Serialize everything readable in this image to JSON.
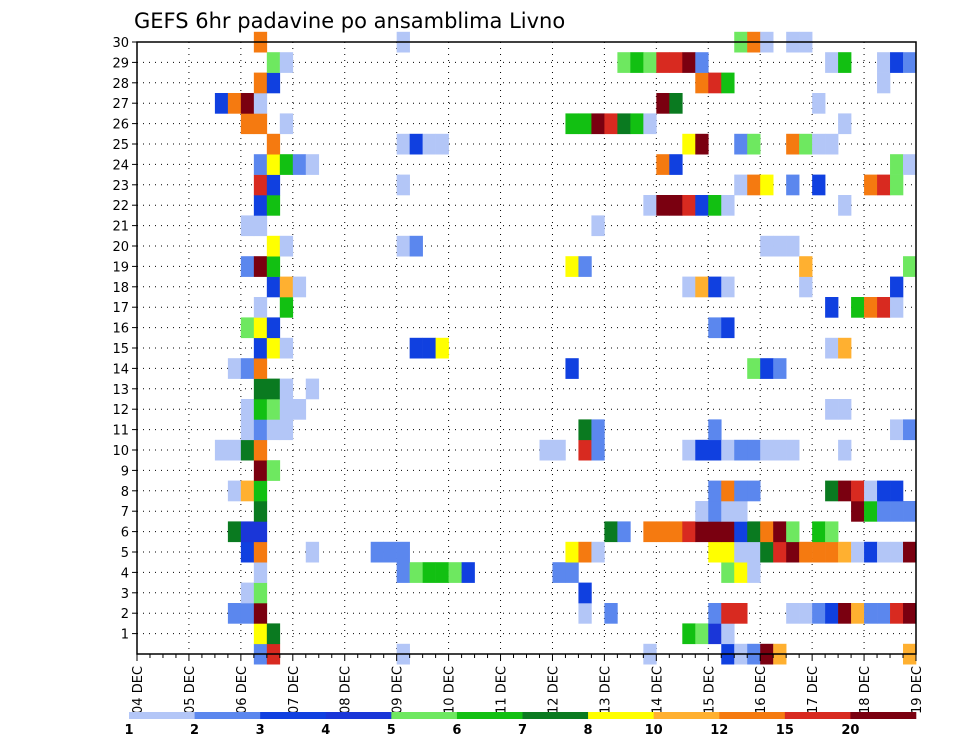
{
  "chart_data": {
    "type": "heatmap",
    "title": "GEFS 6hr padavine po ansamblima Livno",
    "xlabel": "",
    "ylabel": "",
    "grid": "dotted",
    "x_ticks": [
      "04 DEC",
      "05 DEC",
      "06 DEC",
      "07 DEC",
      "08 DEC",
      "09 DEC",
      "10 DEC",
      "11 DEC",
      "12 DEC",
      "13 DEC",
      "14 DEC",
      "15 DEC",
      "16 DEC",
      "17 DEC",
      "18 DEC",
      "19 DEC"
    ],
    "y_ticks": [
      "1",
      "2",
      "3",
      "4",
      "5",
      "6",
      "7",
      "8",
      "9",
      "10",
      "11",
      "12",
      "13",
      "14",
      "15",
      "16",
      "17",
      "18",
      "19",
      "20",
      "21",
      "22",
      "23",
      "24",
      "25",
      "26",
      "27",
      "28",
      "29",
      "30"
    ],
    "x_unit": "6h step from 04 DEC 00Z (60 steps)",
    "legend": {
      "labels": [
        "1",
        "2",
        "3",
        "4",
        "5",
        "6",
        "7",
        "8",
        "10",
        "12",
        "15",
        "20"
      ],
      "colors": [
        "#b3c6f7",
        "#5b87ee",
        "#1040e0",
        "#1a36d8",
        "#6ee860",
        "#12c012",
        "#0a7a20",
        "#ffff00",
        "#ffb030",
        "#f57a10",
        "#d82a20",
        "#7a0010"
      ]
    },
    "members": [
      {
        "member": 0,
        "cells": [
          [
            9,
            2
          ],
          [
            10,
            11
          ],
          [
            20,
            1
          ],
          [
            39,
            1
          ],
          [
            45,
            3
          ],
          [
            46,
            0
          ],
          [
            47,
            2
          ],
          [
            48,
            12
          ],
          [
            49,
            9
          ],
          [
            59,
            9
          ]
        ]
      },
      {
        "member": 1,
        "cells": [
          [
            9,
            8
          ],
          [
            10,
            7
          ],
          [
            42,
            6
          ],
          [
            43,
            5
          ],
          [
            44,
            4
          ],
          [
            45,
            1
          ]
        ]
      },
      {
        "member": 2,
        "cells": [
          [
            7,
            2
          ],
          [
            8,
            2
          ],
          [
            9,
            12
          ],
          [
            34,
            1
          ],
          [
            36,
            2
          ],
          [
            44,
            2
          ],
          [
            45,
            11
          ],
          [
            46,
            11
          ],
          [
            50,
            1
          ],
          [
            51,
            1
          ],
          [
            52,
            2
          ],
          [
            53,
            3
          ],
          [
            54,
            12
          ],
          [
            55,
            9
          ],
          [
            56,
            2
          ],
          [
            57,
            2
          ],
          [
            58,
            11
          ],
          [
            59,
            12
          ]
        ]
      },
      {
        "member": 3,
        "cells": [
          [
            8,
            1
          ],
          [
            9,
            5
          ],
          [
            34,
            3
          ]
        ]
      },
      {
        "member": 4,
        "cells": [
          [
            9,
            1
          ],
          [
            20,
            2
          ],
          [
            21,
            5
          ],
          [
            22,
            6
          ],
          [
            23,
            6
          ],
          [
            24,
            5
          ],
          [
            25,
            3
          ],
          [
            32,
            2
          ],
          [
            33,
            2
          ],
          [
            45,
            5
          ],
          [
            46,
            8
          ],
          [
            47,
            1
          ]
        ]
      },
      {
        "member": 5,
        "cells": [
          [
            8,
            3
          ],
          [
            9,
            10
          ],
          [
            13,
            1
          ],
          [
            18,
            2
          ],
          [
            19,
            2
          ],
          [
            20,
            2
          ],
          [
            33,
            8
          ],
          [
            34,
            10
          ],
          [
            35,
            1
          ],
          [
            44,
            8
          ],
          [
            45,
            8
          ],
          [
            46,
            1
          ],
          [
            47,
            1
          ],
          [
            48,
            7
          ],
          [
            49,
            11
          ],
          [
            50,
            12
          ],
          [
            51,
            10
          ],
          [
            52,
            10
          ],
          [
            53,
            10
          ],
          [
            54,
            9
          ],
          [
            55,
            1
          ],
          [
            56,
            3
          ],
          [
            57,
            1
          ],
          [
            58,
            1
          ],
          [
            59,
            12
          ]
        ]
      },
      {
        "member": 6,
        "cells": [
          [
            7,
            7
          ],
          [
            8,
            4
          ],
          [
            9,
            4
          ],
          [
            36,
            7
          ],
          [
            37,
            2
          ],
          [
            39,
            10
          ],
          [
            40,
            10
          ],
          [
            41,
            10
          ],
          [
            42,
            11
          ],
          [
            43,
            12
          ],
          [
            44,
            12
          ],
          [
            45,
            12
          ],
          [
            46,
            3
          ],
          [
            47,
            7
          ],
          [
            48,
            10
          ],
          [
            49,
            12
          ],
          [
            50,
            5
          ],
          [
            52,
            6
          ],
          [
            53,
            5
          ]
        ]
      },
      {
        "member": 7,
        "cells": [
          [
            9,
            7
          ],
          [
            43,
            1
          ],
          [
            44,
            2
          ],
          [
            45,
            1
          ],
          [
            46,
            1
          ],
          [
            55,
            12
          ],
          [
            56,
            6
          ],
          [
            57,
            2
          ],
          [
            58,
            2
          ],
          [
            59,
            2
          ]
        ]
      },
      {
        "member": 8,
        "cells": [
          [
            7,
            1
          ],
          [
            8,
            9
          ],
          [
            9,
            6
          ],
          [
            44,
            2
          ],
          [
            45,
            10
          ],
          [
            46,
            2
          ],
          [
            47,
            2
          ],
          [
            53,
            7
          ],
          [
            54,
            12
          ],
          [
            55,
            11
          ],
          [
            56,
            1
          ],
          [
            57,
            3
          ],
          [
            58,
            3
          ]
        ]
      },
      {
        "member": 9,
        "cells": [
          [
            9,
            12
          ],
          [
            10,
            5
          ]
        ]
      },
      {
        "member": 10,
        "cells": [
          [
            6,
            1
          ],
          [
            7,
            1
          ],
          [
            8,
            7
          ],
          [
            9,
            10
          ],
          [
            31,
            1
          ],
          [
            32,
            1
          ],
          [
            34,
            11
          ],
          [
            35,
            2
          ],
          [
            42,
            1
          ],
          [
            43,
            3
          ],
          [
            44,
            3
          ],
          [
            45,
            1
          ],
          [
            46,
            2
          ],
          [
            47,
            2
          ],
          [
            48,
            1
          ],
          [
            49,
            1
          ],
          [
            50,
            1
          ],
          [
            54,
            1
          ]
        ]
      },
      {
        "member": 11,
        "cells": [
          [
            8,
            1
          ],
          [
            9,
            2
          ],
          [
            10,
            1
          ],
          [
            11,
            1
          ],
          [
            34,
            7
          ],
          [
            35,
            2
          ],
          [
            44,
            2
          ],
          [
            58,
            1
          ],
          [
            59,
            2
          ]
        ]
      },
      {
        "member": 12,
        "cells": [
          [
            8,
            1
          ],
          [
            9,
            6
          ],
          [
            10,
            5
          ],
          [
            11,
            1
          ],
          [
            12,
            1
          ],
          [
            53,
            1
          ],
          [
            54,
            1
          ]
        ]
      },
      {
        "member": 13,
        "cells": [
          [
            9,
            7
          ],
          [
            10,
            7
          ],
          [
            11,
            1
          ],
          [
            13,
            1
          ]
        ]
      },
      {
        "member": 14,
        "cells": [
          [
            7,
            1
          ],
          [
            8,
            2
          ],
          [
            9,
            10
          ],
          [
            33,
            3
          ],
          [
            47,
            5
          ],
          [
            48,
            3
          ],
          [
            49,
            2
          ]
        ]
      },
      {
        "member": 15,
        "cells": [
          [
            9,
            3
          ],
          [
            10,
            8
          ],
          [
            11,
            1
          ],
          [
            21,
            3
          ],
          [
            22,
            3
          ],
          [
            23,
            8
          ],
          [
            53,
            1
          ],
          [
            54,
            9
          ]
        ]
      },
      {
        "member": 16,
        "cells": [
          [
            8,
            5
          ],
          [
            9,
            8
          ],
          [
            10,
            3
          ],
          [
            44,
            2
          ],
          [
            45,
            3
          ]
        ]
      },
      {
        "member": 17,
        "cells": [
          [
            9,
            1
          ],
          [
            11,
            6
          ],
          [
            53,
            3
          ],
          [
            55,
            6
          ],
          [
            56,
            10
          ],
          [
            57,
            11
          ],
          [
            58,
            1
          ]
        ]
      },
      {
        "member": 18,
        "cells": [
          [
            10,
            3
          ],
          [
            11,
            9
          ],
          [
            12,
            1
          ],
          [
            42,
            1
          ],
          [
            43,
            9
          ],
          [
            44,
            3
          ],
          [
            45,
            1
          ],
          [
            51,
            1
          ],
          [
            58,
            3
          ]
        ]
      },
      {
        "member": 19,
        "cells": [
          [
            8,
            2
          ],
          [
            9,
            12
          ],
          [
            10,
            6
          ],
          [
            33,
            8
          ],
          [
            34,
            2
          ],
          [
            51,
            9
          ],
          [
            59,
            5
          ]
        ]
      },
      {
        "member": 20,
        "cells": [
          [
            10,
            8
          ],
          [
            11,
            1
          ],
          [
            20,
            1
          ],
          [
            21,
            2
          ],
          [
            48,
            1
          ],
          [
            49,
            1
          ],
          [
            50,
            1
          ]
        ]
      },
      {
        "member": 21,
        "cells": [
          [
            8,
            1
          ],
          [
            9,
            1
          ],
          [
            35,
            1
          ]
        ]
      },
      {
        "member": 22,
        "cells": [
          [
            9,
            3
          ],
          [
            10,
            6
          ],
          [
            39,
            1
          ],
          [
            40,
            12
          ],
          [
            41,
            12
          ],
          [
            42,
            11
          ],
          [
            43,
            3
          ],
          [
            44,
            6
          ],
          [
            45,
            1
          ],
          [
            54,
            1
          ]
        ]
      },
      {
        "member": 23,
        "cells": [
          [
            9,
            11
          ],
          [
            10,
            3
          ],
          [
            20,
            1
          ],
          [
            46,
            1
          ],
          [
            47,
            10
          ],
          [
            48,
            8
          ],
          [
            50,
            2
          ],
          [
            52,
            3
          ],
          [
            56,
            10
          ],
          [
            57,
            11
          ],
          [
            58,
            5
          ]
        ]
      },
      {
        "member": 24,
        "cells": [
          [
            9,
            2
          ],
          [
            10,
            8
          ],
          [
            11,
            6
          ],
          [
            12,
            2
          ],
          [
            13,
            1
          ],
          [
            40,
            10
          ],
          [
            41,
            3
          ],
          [
            58,
            5
          ],
          [
            59,
            1
          ]
        ]
      },
      {
        "member": 25,
        "cells": [
          [
            10,
            10
          ],
          [
            20,
            1
          ],
          [
            21,
            3
          ],
          [
            22,
            1
          ],
          [
            23,
            1
          ],
          [
            42,
            8
          ],
          [
            43,
            12
          ],
          [
            46,
            2
          ],
          [
            47,
            5
          ],
          [
            50,
            10
          ],
          [
            51,
            5
          ],
          [
            52,
            1
          ],
          [
            53,
            1
          ]
        ]
      },
      {
        "member": 26,
        "cells": [
          [
            8,
            10
          ],
          [
            9,
            10
          ],
          [
            11,
            1
          ],
          [
            33,
            6
          ],
          [
            34,
            6
          ],
          [
            35,
            12
          ],
          [
            36,
            11
          ],
          [
            37,
            7
          ],
          [
            38,
            6
          ],
          [
            39,
            1
          ],
          [
            54,
            1
          ]
        ]
      },
      {
        "member": 27,
        "cells": [
          [
            6,
            3
          ],
          [
            7,
            10
          ],
          [
            8,
            12
          ],
          [
            9,
            1
          ],
          [
            40,
            12
          ],
          [
            41,
            7
          ],
          [
            52,
            1
          ]
        ]
      },
      {
        "member": 28,
        "cells": [
          [
            9,
            10
          ],
          [
            10,
            3
          ],
          [
            43,
            10
          ],
          [
            44,
            11
          ],
          [
            45,
            6
          ],
          [
            57,
            1
          ]
        ]
      },
      {
        "member": 29,
        "cells": [
          [
            10,
            5
          ],
          [
            11,
            1
          ],
          [
            37,
            5
          ],
          [
            38,
            6
          ],
          [
            39,
            5
          ],
          [
            40,
            11
          ],
          [
            41,
            11
          ],
          [
            42,
            12
          ],
          [
            43,
            2
          ],
          [
            53,
            1
          ],
          [
            54,
            6
          ],
          [
            57,
            1
          ],
          [
            58,
            3
          ],
          [
            59,
            2
          ]
        ]
      },
      {
        "member": 30,
        "cells": [
          [
            9,
            10
          ],
          [
            20,
            1
          ],
          [
            46,
            5
          ],
          [
            47,
            10
          ],
          [
            48,
            1
          ],
          [
            50,
            1
          ],
          [
            51,
            1
          ]
        ]
      }
    ]
  }
}
